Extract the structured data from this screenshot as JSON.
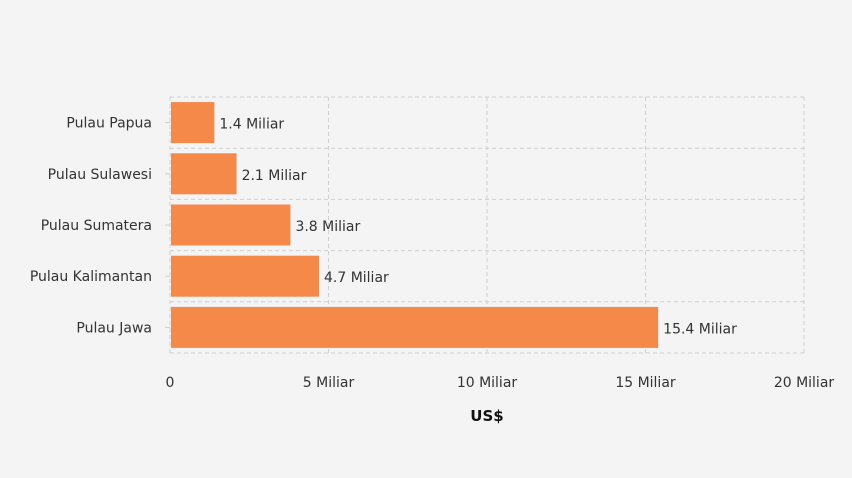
{
  "chart_data": {
    "type": "bar",
    "orientation": "horizontal",
    "categories": [
      "Pulau Jawa",
      "Pulau Kalimantan",
      "Pulau Sumatera",
      "Pulau Sulawesi",
      "Pulau Papua"
    ],
    "values": [
      15.4,
      4.7,
      3.8,
      2.1,
      1.4
    ],
    "data_labels": [
      "15.4 Miliar",
      "4.7 Miliar",
      "3.8 Miliar",
      "2.1 Miliar",
      "1.4 Miliar"
    ],
    "xlabel": "US$",
    "ylabel": "",
    "xlim": [
      0,
      20
    ],
    "x_ticks": [
      0,
      5,
      10,
      15,
      20
    ],
    "x_tick_labels": [
      "0",
      "5 Miliar",
      "10 Miliar",
      "15 Miliar",
      "20 Miliar"
    ],
    "grid": true,
    "bar_color": "#f4894a",
    "legend": "none"
  }
}
